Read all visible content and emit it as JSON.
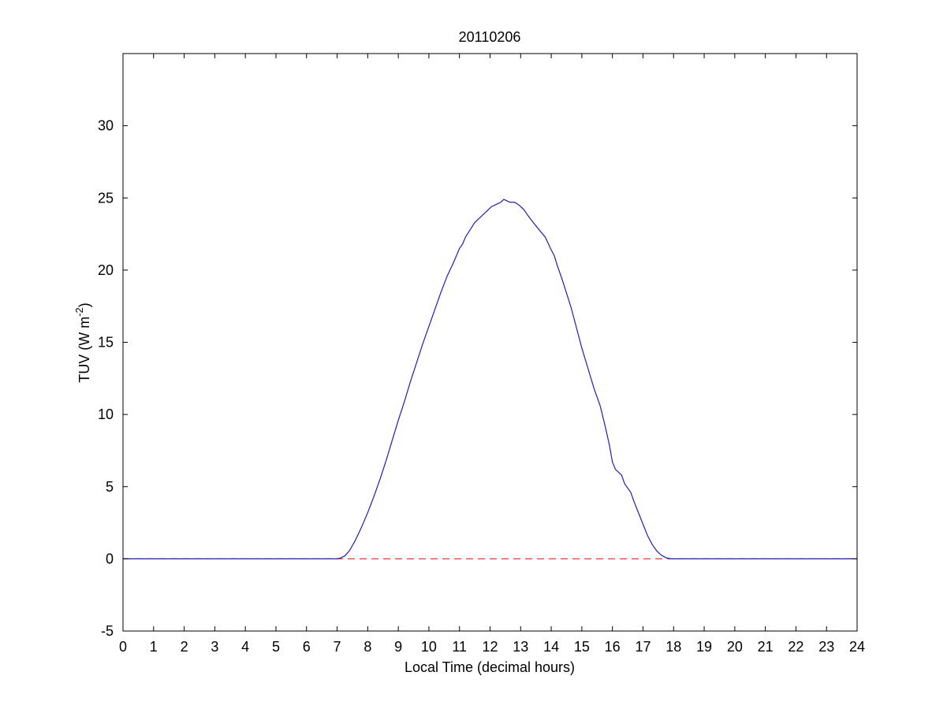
{
  "chart_data": {
    "type": "line",
    "title": "20110206",
    "xlabel": "Local Time (decimal hours)",
    "ylabel": {
      "main": "TUV (W m",
      "superscript": "-2",
      "close": ")"
    },
    "xlim": [
      0,
      24
    ],
    "ylim": [
      -5,
      35
    ],
    "xticks": [
      0,
      1,
      2,
      3,
      4,
      5,
      6,
      7,
      8,
      9,
      10,
      11,
      12,
      13,
      14,
      15,
      16,
      17,
      18,
      19,
      20,
      21,
      22,
      23,
      24
    ],
    "yticks": [
      -5,
      0,
      5,
      10,
      15,
      20,
      25,
      30
    ],
    "grid": false,
    "series": [
      {
        "style": "solid",
        "color": "#1f1fb4",
        "points": [
          [
            0,
            0
          ],
          [
            7.0,
            0
          ],
          [
            7.1,
            0.05
          ],
          [
            7.25,
            0.2
          ],
          [
            7.4,
            0.55
          ],
          [
            7.6,
            1.3
          ],
          [
            7.8,
            2.2
          ],
          [
            8.0,
            3.2
          ],
          [
            8.2,
            4.3
          ],
          [
            8.4,
            5.5
          ],
          [
            8.6,
            6.8
          ],
          [
            8.8,
            8.2
          ],
          [
            9.0,
            9.6
          ],
          [
            9.2,
            10.9
          ],
          [
            9.4,
            12.3
          ],
          [
            9.6,
            13.6
          ],
          [
            9.8,
            14.9
          ],
          [
            10.0,
            16.1
          ],
          [
            10.2,
            17.3
          ],
          [
            10.4,
            18.5
          ],
          [
            10.6,
            19.6
          ],
          [
            10.8,
            20.5
          ],
          [
            11.0,
            21.5
          ],
          [
            11.1,
            21.8
          ],
          [
            11.2,
            22.3
          ],
          [
            11.35,
            22.8
          ],
          [
            11.5,
            23.3
          ],
          [
            11.65,
            23.6
          ],
          [
            11.8,
            23.9
          ],
          [
            11.95,
            24.2
          ],
          [
            12.05,
            24.4
          ],
          [
            12.15,
            24.5
          ],
          [
            12.25,
            24.6
          ],
          [
            12.35,
            24.7
          ],
          [
            12.45,
            24.9
          ],
          [
            12.55,
            24.8
          ],
          [
            12.65,
            24.7
          ],
          [
            12.8,
            24.7
          ],
          [
            12.95,
            24.5
          ],
          [
            13.1,
            24.2
          ],
          [
            13.2,
            23.9
          ],
          [
            13.3,
            23.6
          ],
          [
            13.45,
            23.2
          ],
          [
            13.6,
            22.8
          ],
          [
            13.8,
            22.3
          ],
          [
            14.0,
            21.4
          ],
          [
            14.1,
            21.0
          ],
          [
            14.2,
            20.3
          ],
          [
            14.35,
            19.4
          ],
          [
            14.5,
            18.4
          ],
          [
            14.65,
            17.4
          ],
          [
            14.8,
            16.2
          ],
          [
            15.0,
            14.6
          ],
          [
            15.2,
            13.2
          ],
          [
            15.4,
            11.8
          ],
          [
            15.6,
            10.6
          ],
          [
            15.75,
            9.3
          ],
          [
            15.9,
            7.9
          ],
          [
            16.0,
            6.7
          ],
          [
            16.1,
            6.2
          ],
          [
            16.2,
            6.0
          ],
          [
            16.3,
            5.8
          ],
          [
            16.4,
            5.2
          ],
          [
            16.5,
            4.9
          ],
          [
            16.6,
            4.6
          ],
          [
            16.7,
            4.0
          ],
          [
            16.85,
            3.2
          ],
          [
            17.0,
            2.4
          ],
          [
            17.15,
            1.6
          ],
          [
            17.3,
            1.0
          ],
          [
            17.45,
            0.55
          ],
          [
            17.6,
            0.25
          ],
          [
            17.75,
            0.08
          ],
          [
            17.9,
            0.0
          ],
          [
            24,
            0
          ]
        ]
      },
      {
        "style": "dashed",
        "color": "#e8383b",
        "points": [
          [
            0,
            0
          ],
          [
            24,
            0
          ]
        ]
      }
    ]
  }
}
